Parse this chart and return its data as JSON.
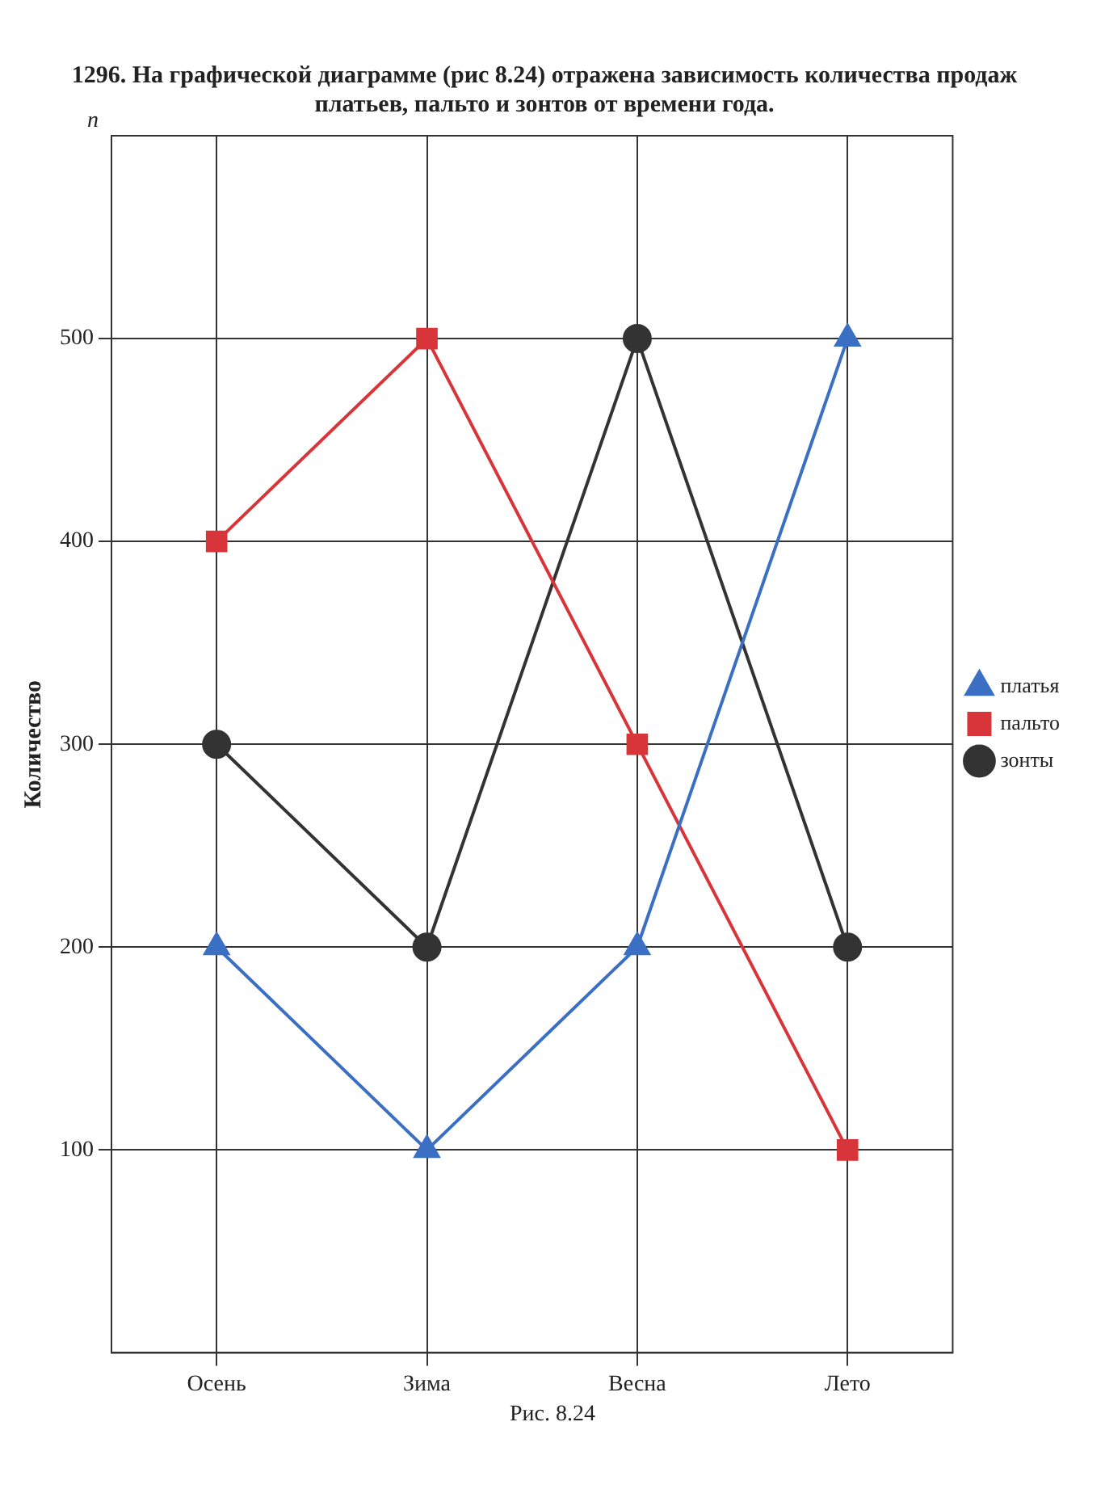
{
  "chart_data": {
    "type": "line",
    "title": "1296. На графической диаграмме (рис 8.24) отражена зависимость количества продаж платьев, пальто и зонтов от времени года.",
    "ylabel": "Количество",
    "categories": [
      "Осень",
      "Зима",
      "Весна",
      "Лето"
    ],
    "series": [
      {
        "name": "платья",
        "color": "#3a6fc4",
        "marker": "triangle",
        "values": [
          200,
          100,
          200,
          500
        ]
      },
      {
        "name": "пальто",
        "color": "#d8353a",
        "marker": "square",
        "values": [
          400,
          500,
          300,
          100
        ]
      },
      {
        "name": "зонты",
        "color": "#333333",
        "marker": "circle",
        "values": [
          300,
          200,
          500,
          200
        ]
      }
    ],
    "ylim": [
      0,
      600
    ],
    "yticks": [
      100,
      200,
      300,
      400,
      500
    ],
    "grid": true,
    "legend": "right",
    "line_style": "solid",
    "annotations": [
      "n",
      "Рис. 8.24"
    ]
  }
}
